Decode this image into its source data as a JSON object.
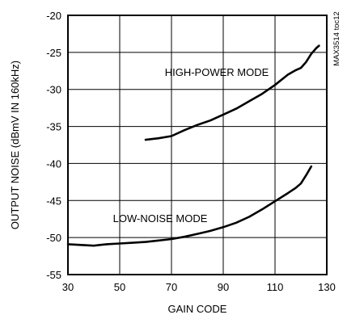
{
  "chart_data": {
    "type": "line",
    "xlabel": "GAIN CODE",
    "ylabel": "OUTPUT NOISE (dBmV IN 160kHz)",
    "xlim": [
      30,
      130
    ],
    "ylim": [
      -55,
      -20
    ],
    "x_ticks": [
      "30",
      "50",
      "70",
      "90",
      "110",
      "130"
    ],
    "y_ticks": [
      "-20",
      "-25",
      "-30",
      "-35",
      "-40",
      "-45",
      "-50",
      "-55"
    ],
    "grid": true,
    "figure_id": "MAX3514 toc12",
    "series": [
      {
        "name": "HIGH-POWER MODE",
        "x": [
          60,
          65,
          70,
          75,
          80,
          85,
          90,
          95,
          100,
          105,
          110,
          115,
          118,
          120,
          122,
          124,
          126,
          127
        ],
        "y": [
          -36.8,
          -36.6,
          -36.3,
          -35.5,
          -34.8,
          -34.2,
          -33.4,
          -32.6,
          -31.6,
          -30.6,
          -29.4,
          -28.0,
          -27.4,
          -27.1,
          -26.3,
          -25.2,
          -24.4,
          -24.1
        ]
      },
      {
        "name": "LOW-NOISE MODE",
        "x": [
          30,
          35,
          40,
          45,
          50,
          55,
          60,
          65,
          70,
          75,
          80,
          85,
          90,
          95,
          100,
          105,
          110,
          115,
          118,
          120,
          122,
          124
        ],
        "y": [
          -50.9,
          -51.0,
          -51.1,
          -50.9,
          -50.8,
          -50.7,
          -50.6,
          -50.4,
          -50.2,
          -49.9,
          -49.5,
          -49.1,
          -48.6,
          -48.0,
          -47.2,
          -46.2,
          -45.1,
          -44.0,
          -43.3,
          -42.7,
          -41.6,
          -40.4
        ]
      }
    ]
  }
}
